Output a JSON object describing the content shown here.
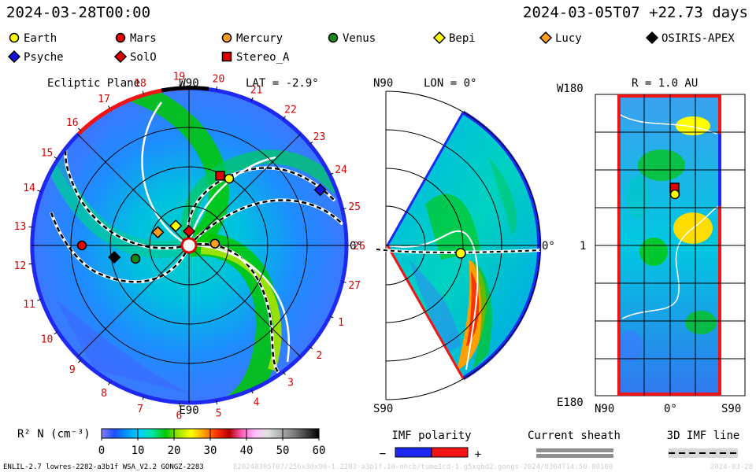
{
  "header": {
    "timestamp": "2024-03-28T00:00",
    "run_info": "2024-03-05T07 +22.73 days"
  },
  "legend": {
    "bodies": [
      {
        "name": "Earth",
        "marker": "circle",
        "color": "#ffff00"
      },
      {
        "name": "Mars",
        "marker": "circle",
        "color": "#e00000"
      },
      {
        "name": "Mercury",
        "marker": "circle",
        "color": "#ff9d1c"
      },
      {
        "name": "Venus",
        "marker": "circle",
        "color": "#138a13"
      },
      {
        "name": "Bepi",
        "marker": "diamond",
        "color": "#ffff00"
      },
      {
        "name": "Lucy",
        "marker": "diamond",
        "color": "#ff9d1c"
      },
      {
        "name": "OSIRIS-APEX",
        "marker": "diamond",
        "color": "#000000"
      },
      {
        "name": "Psyche",
        "marker": "diamond",
        "color": "#1010e0"
      },
      {
        "name": "SolO",
        "marker": "diamond",
        "color": "#e00000"
      },
      {
        "name": "Stereo_A",
        "marker": "square",
        "color": "#e00000"
      }
    ]
  },
  "panels": {
    "ecliptic": {
      "title": "Ecliptic Plane",
      "lat_label": "LAT = -2.9°",
      "top_label": "W90",
      "bottom_label": "E90",
      "right_label": "0°",
      "carrington_ticks": [
        "20",
        "21",
        "22",
        "23",
        "24",
        "25",
        "26",
        "27",
        "1",
        "2",
        "3",
        "4",
        "5",
        "6",
        "7",
        "8",
        "9",
        "10",
        "11",
        "12",
        "13",
        "14",
        "15",
        "16",
        "17",
        "18",
        "19"
      ]
    },
    "meridional": {
      "lon_label": "LON = 0°",
      "top_label": "N90",
      "bottom_label": "S90",
      "right_label": "0°"
    },
    "radial": {
      "r_label": "R = 1.0 AU",
      "y_top": "W180",
      "y_mid": "1",
      "y_bottom": "E180",
      "x_left": "N90",
      "x_mid": "0°",
      "x_right": "S90"
    }
  },
  "colorbar": {
    "label": "R² N (cm⁻³)",
    "ticks": [
      "0",
      "10",
      "20",
      "30",
      "40",
      "50",
      "60"
    ],
    "colors": [
      "#8080ff",
      "#1e50ff",
      "#009bff",
      "#00d2ff",
      "#00e6a0",
      "#00c800",
      "#a0e600",
      "#ffff00",
      "#ffa000",
      "#ff3200",
      "#b40000",
      "#ff60c0",
      "#ffc0ff",
      "#e0e0e0",
      "#b0b0b0",
      "#808080",
      "#404040",
      "#000000"
    ]
  },
  "legend_bottom": {
    "imf_title": "IMF polarity",
    "minus": "−",
    "plus": "+",
    "sheath_title": "Current sheath",
    "imf_line_title": "3D IMF line"
  },
  "footer": {
    "model": "ENLIL-2.7 lowres-2282-a3b1f WSA_V2.2 GONGZ-2283",
    "run_id": "E20240305T07/256x30x90-1.2283-a3b1f.10-nhcb/tume1cd-1.g5xqbd2.gongs-2024/0304T14:50.00100",
    "date": "2024-03-28"
  },
  "chart_data": [
    {
      "type": "heatmap",
      "panel": "ecliptic",
      "title": "Ecliptic Plane",
      "radial_range_au": [
        0,
        2
      ],
      "bodies_au": [
        {
          "name": "Earth",
          "r": 0.99,
          "lon": 59
        },
        {
          "name": "Mars",
          "r": 1.36,
          "lon": 180
        },
        {
          "name": "Mercury",
          "r": 0.33,
          "lon": 4
        },
        {
          "name": "Venus",
          "r": 0.7,
          "lon": -166
        },
        {
          "name": "Bepi",
          "r": 0.3,
          "lon": 124
        },
        {
          "name": "Lucy",
          "r": 0.43,
          "lon": 157
        },
        {
          "name": "OSIRIS-APEX",
          "r": 0.96,
          "lon": -171
        },
        {
          "name": "Psyche",
          "r": 1.81,
          "lon": 23
        },
        {
          "name": "SolO",
          "r": 0.18,
          "lon": 90
        },
        {
          "name": "Stereo_A",
          "r": 0.97,
          "lon": 66
        }
      ]
    },
    {
      "type": "heatmap",
      "panel": "meridional",
      "lat_range_deg": [
        -60,
        60
      ],
      "bodies_au": [
        {
          "name": "Earth",
          "r": 0.99,
          "lat": -2.9
        }
      ]
    },
    {
      "type": "heatmap",
      "panel": "radial",
      "r_au": 1.0,
      "bodies": [
        {
          "name": "Earth",
          "lat": -2.9,
          "lon": 59
        },
        {
          "name": "Stereo_A",
          "lat": -3.5,
          "lon": 66
        }
      ]
    }
  ]
}
